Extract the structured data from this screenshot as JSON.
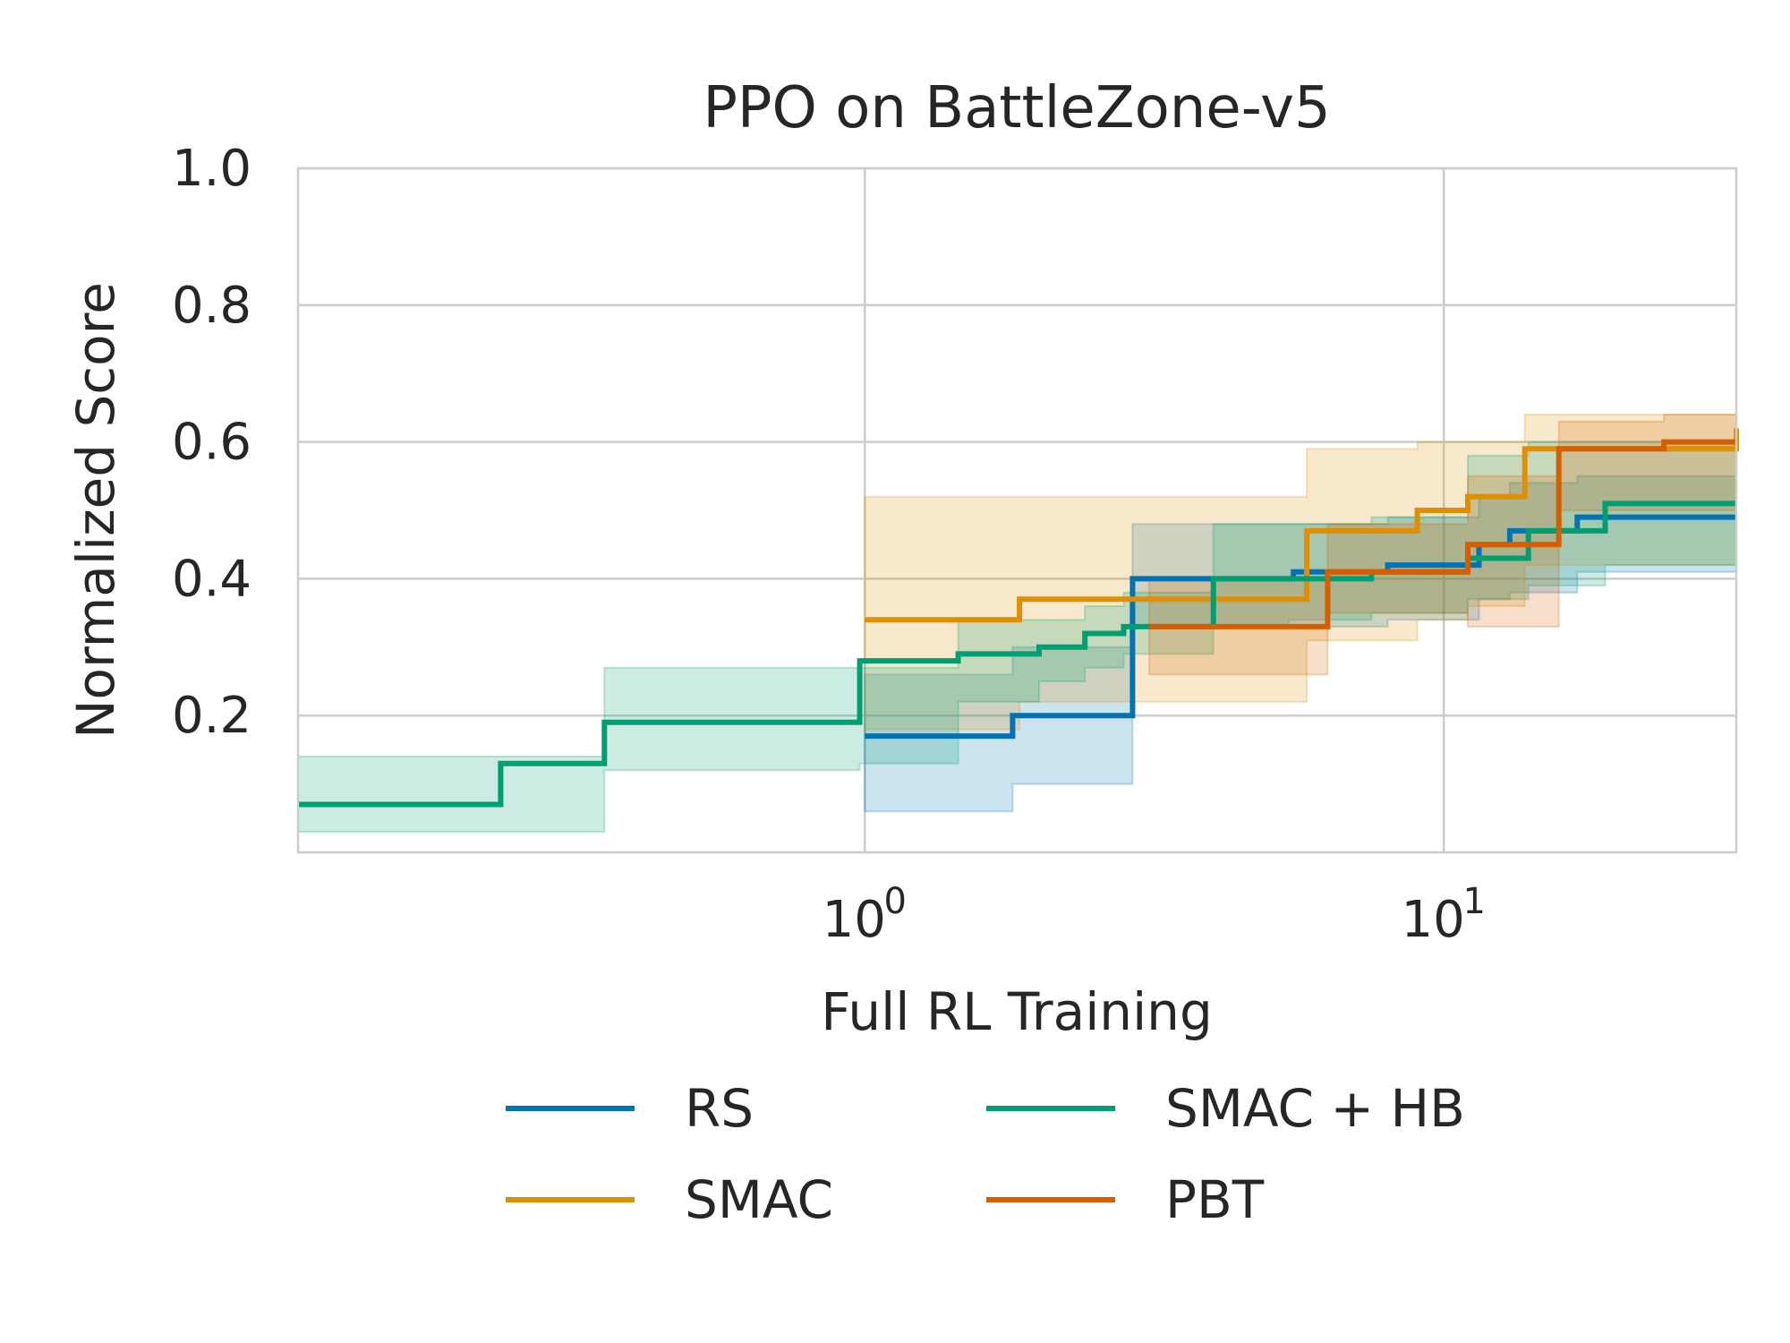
{
  "chart_data": {
    "type": "line",
    "title": "PPO on BattleZone-v5",
    "xlabel": "Full RL Training",
    "ylabel": "Normalized Score",
    "xscale": "log",
    "xlim": [
      0.105,
      32
    ],
    "ylim": [
      0.0,
      1.0
    ],
    "yticks": [
      {
        "value": 0.2,
        "label": "0.2"
      },
      {
        "value": 0.4,
        "label": "0.4"
      },
      {
        "value": 0.6,
        "label": "0.6"
      },
      {
        "value": 0.8,
        "label": "0.8"
      },
      {
        "value": 1.0,
        "label": "1.0"
      }
    ],
    "xticks": [
      {
        "value": 1,
        "base": "10",
        "exp": "0"
      },
      {
        "value": 10,
        "base": "10",
        "exp": "1"
      }
    ],
    "grid": true,
    "legend": {
      "placement": "below",
      "columns": 2
    },
    "series": [
      {
        "name": "RS",
        "color": "#0173b2",
        "x": [
          1.0,
          1.8,
          2.9,
          5.5,
          8.0,
          11.5,
          13.0,
          17.0,
          32
        ],
        "y": [
          0.17,
          0.2,
          0.4,
          0.41,
          0.42,
          0.45,
          0.47,
          0.49,
          0.49
        ],
        "lower": [
          0.06,
          0.1,
          0.33,
          0.33,
          0.34,
          0.37,
          0.38,
          0.41,
          0.42
        ],
        "upper": [
          0.26,
          0.3,
          0.48,
          0.48,
          0.49,
          0.52,
          0.54,
          0.55,
          0.55
        ]
      },
      {
        "name": "SMAC",
        "color": "#de8f05",
        "x": [
          1.0,
          1.85,
          5.8,
          9.0,
          11.0,
          13.8,
          32
        ],
        "y": [
          0.34,
          0.37,
          0.47,
          0.5,
          0.52,
          0.59,
          0.62
        ],
        "lower": [
          0.18,
          0.22,
          0.31,
          0.34,
          0.36,
          0.42,
          0.45
        ],
        "upper": [
          0.52,
          0.52,
          0.59,
          0.6,
          0.6,
          0.64,
          0.65
        ]
      },
      {
        "name": "SMAC + HB",
        "color": "#029e73",
        "x": [
          0.105,
          0.235,
          0.355,
          0.98,
          1.45,
          2.0,
          2.4,
          2.8,
          4.0,
          5.4,
          7.5,
          11.0,
          14.0,
          19.0,
          32
        ],
        "y": [
          0.07,
          0.13,
          0.19,
          0.28,
          0.29,
          0.3,
          0.32,
          0.33,
          0.4,
          0.4,
          0.41,
          0.43,
          0.47,
          0.51,
          0.51
        ],
        "lower": [
          0.03,
          0.03,
          0.12,
          0.13,
          0.22,
          0.25,
          0.27,
          0.29,
          0.33,
          0.34,
          0.35,
          0.37,
          0.39,
          0.42,
          0.42
        ],
        "upper": [
          0.14,
          0.14,
          0.27,
          0.27,
          0.34,
          0.34,
          0.36,
          0.38,
          0.48,
          0.48,
          0.49,
          0.58,
          0.6,
          0.6,
          0.6
        ]
      },
      {
        "name": "PBT",
        "color": "#d55e00",
        "x": [
          3.1,
          6.3,
          11.0,
          15.8,
          24.0,
          32
        ],
        "y": [
          0.33,
          0.41,
          0.45,
          0.59,
          0.6,
          0.6
        ],
        "lower": [
          0.26,
          0.35,
          0.33,
          0.5,
          0.5,
          0.5
        ],
        "upper": [
          0.4,
          0.48,
          0.55,
          0.63,
          0.64,
          0.64
        ]
      }
    ]
  }
}
